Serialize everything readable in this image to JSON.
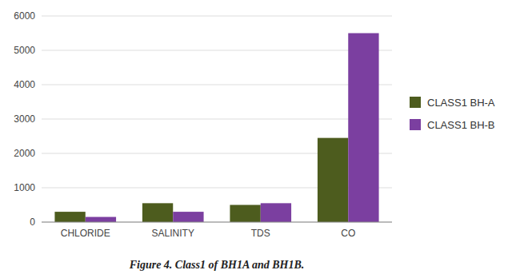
{
  "chart_data": {
    "type": "bar",
    "caption": "Figure 4. Class1 of BH1A and BH1B.",
    "categories": [
      "CHLORIDE",
      "SALINITY",
      "TDS",
      "CO"
    ],
    "series": [
      {
        "name": "CLASS1 BH-A",
        "color": "#4d5c1e",
        "values": [
          300,
          550,
          500,
          2450
        ]
      },
      {
        "name": "CLASS1 BH-B",
        "color": "#7b3fa0",
        "values": [
          150,
          300,
          550,
          5500
        ]
      }
    ],
    "ylim": [
      0,
      6000
    ],
    "yticks": [
      0,
      1000,
      2000,
      3000,
      4000,
      5000,
      6000
    ],
    "grid": true,
    "legend": "right"
  }
}
